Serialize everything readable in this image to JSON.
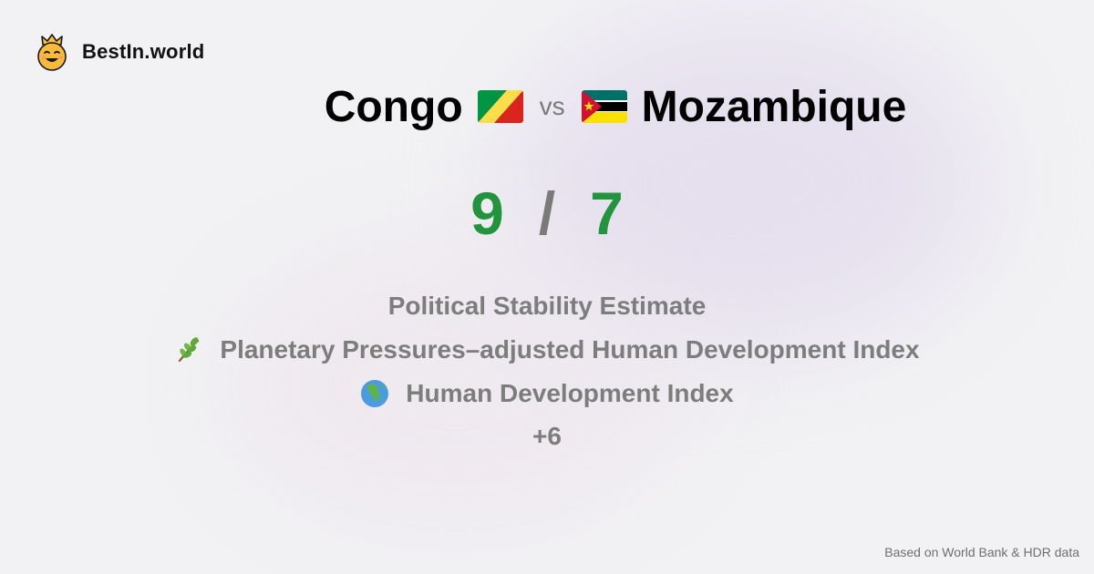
{
  "brand": {
    "name": "BestIn.world",
    "logo_icon": "crown-smiley-icon"
  },
  "comparison": {
    "left_country": "Congo",
    "left_flag_icon": "congo-flag-icon",
    "vs_label": "vs",
    "right_country": "Mozambique",
    "right_flag_icon": "mozambique-flag-icon"
  },
  "scores": {
    "left": "9",
    "separator": "/",
    "right": "7"
  },
  "metrics": [
    {
      "label": "Political Stability Estimate",
      "icon": ""
    },
    {
      "label": "Planetary Pressures–adjusted Human Development Index",
      "icon": "leaf-branch-icon"
    },
    {
      "label": "Human Development Index",
      "icon": "globe-africa-icon"
    }
  ],
  "more_label": "+6",
  "footer": {
    "source_text": "Based on World Bank & HDR data"
  },
  "colors": {
    "score_green": "#22943e",
    "muted_gray": "#7d7d7d"
  }
}
